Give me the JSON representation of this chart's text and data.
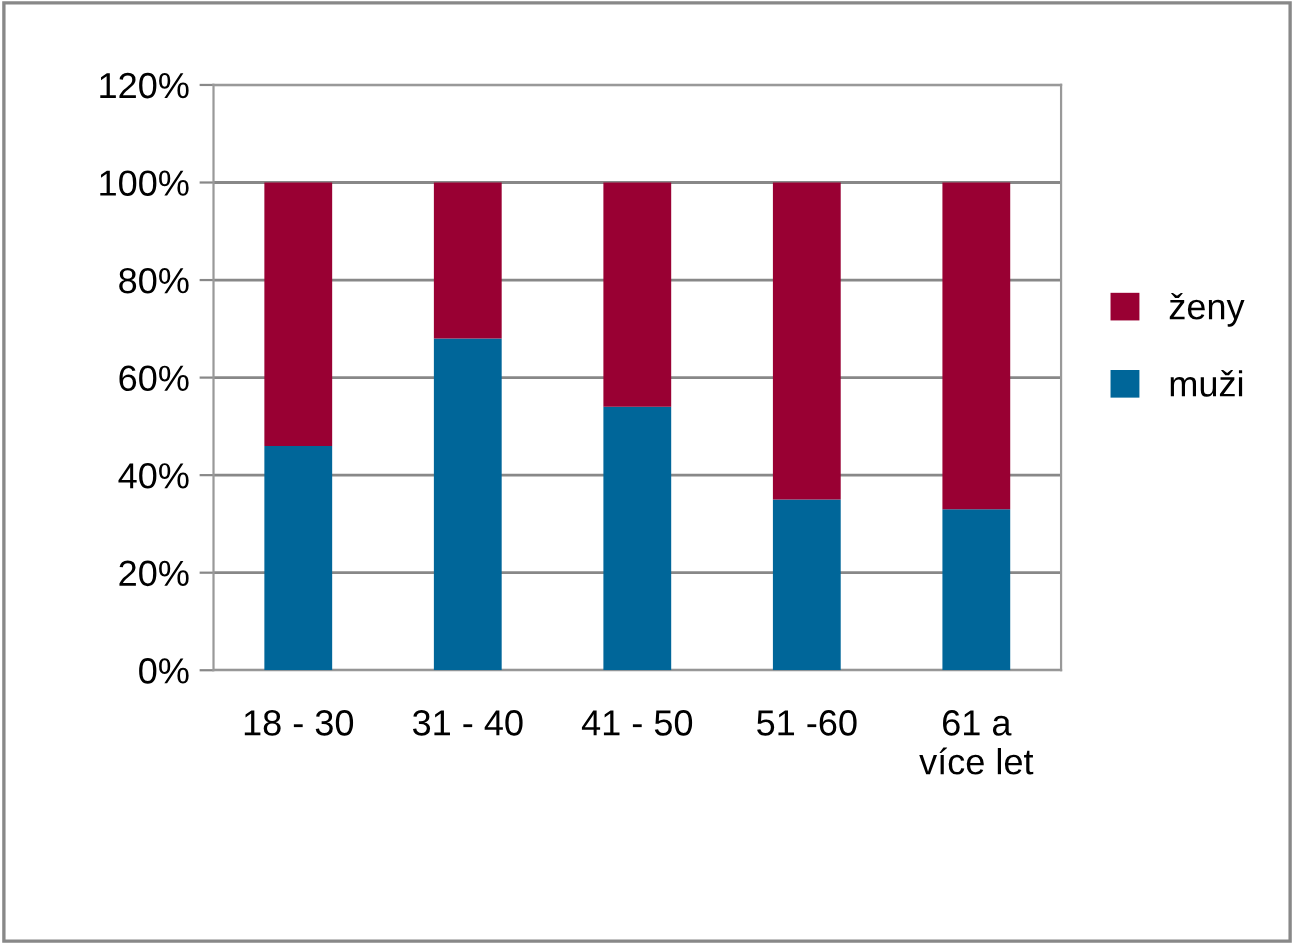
{
  "chart_data": {
    "type": "bar",
    "stacked": true,
    "categories": [
      "18 - 30",
      "31 - 40",
      "41 - 50",
      "51 -60",
      "61 a\nvíce let"
    ],
    "series": [
      {
        "name": "muži",
        "color": "#006699",
        "values": [
          46,
          68,
          54,
          35,
          33
        ]
      },
      {
        "name": "ženy",
        "color": "#990033",
        "values": [
          54,
          32,
          46,
          65,
          67
        ]
      }
    ],
    "ylim": [
      0,
      120
    ],
    "yticks": [
      {
        "value": 0,
        "label": "0%"
      },
      {
        "value": 20,
        "label": "20%"
      },
      {
        "value": 40,
        "label": "40%"
      },
      {
        "value": 60,
        "label": "60%"
      },
      {
        "value": 80,
        "label": "80%"
      },
      {
        "value": 100,
        "label": "100%"
      },
      {
        "value": 120,
        "label": "120%"
      }
    ],
    "grid": "y",
    "legend": "right"
  }
}
